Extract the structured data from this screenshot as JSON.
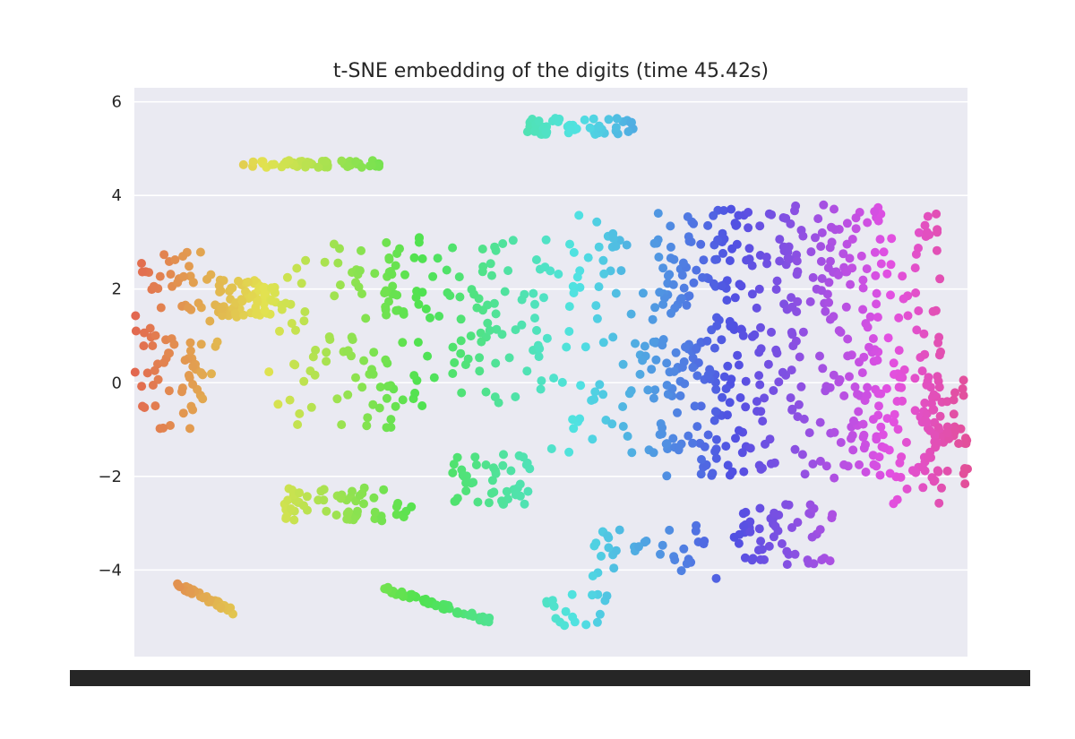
{
  "chart_data": {
    "type": "scatter",
    "title": "t-SNE embedding of the digits (time 45.42s)",
    "xlabel": "",
    "ylabel": "",
    "ylim": [
      -5.85,
      6.3
    ],
    "yticks": [
      6,
      4,
      2,
      0,
      -2,
      -4
    ],
    "y_tick_labels": [
      "6",
      "4",
      "2",
      "0",
      "−2",
      "−4"
    ],
    "x_tick_labels_note": "x-axis tick labels are overlapping and illegible",
    "grid": true,
    "legend": "none",
    "background_color": "#eaeaf2",
    "grid_color": "#ffffff",
    "color_scheme": "husl gradient from red-orange (left) through green, teal, blue to magenta (right)",
    "point_count_approx": 1797
  }
}
